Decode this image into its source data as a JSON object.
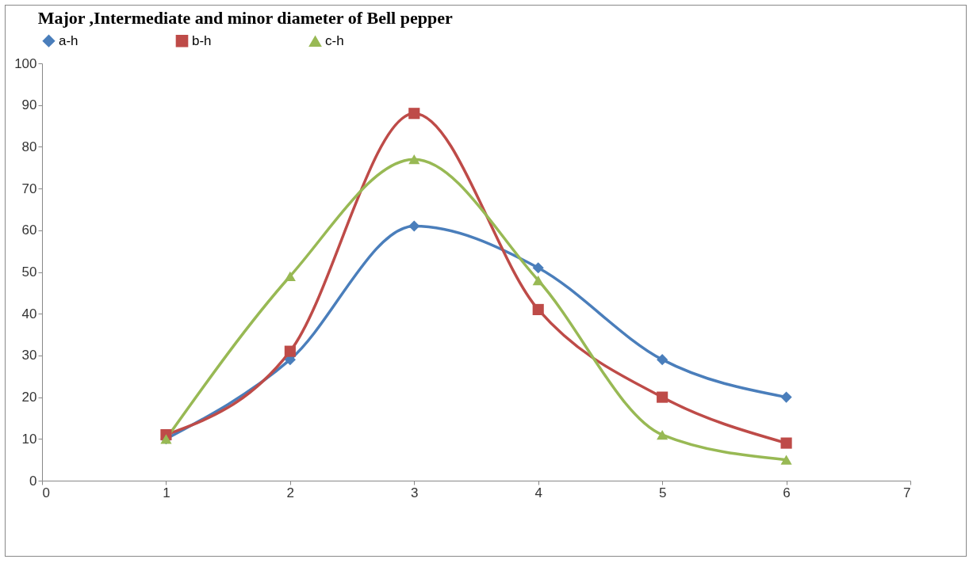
{
  "chart_data": {
    "type": "line",
    "title": "Major ,Intermediate and minor diameter of Bell pepper",
    "x": [
      1,
      2,
      3,
      4,
      5,
      6
    ],
    "series": [
      {
        "name": "a-h",
        "color": "#4a7ebb",
        "marker": "diamond",
        "values": [
          10,
          29,
          61,
          51,
          29,
          20
        ]
      },
      {
        "name": "b-h",
        "color": "#be4b48",
        "marker": "square",
        "values": [
          11,
          31,
          88,
          41,
          20,
          9
        ]
      },
      {
        "name": "c-h",
        "color": "#98b954",
        "marker": "triangle",
        "values": [
          10,
          49,
          77,
          48,
          11,
          5
        ]
      }
    ],
    "xlim": [
      0,
      7
    ],
    "xticks": [
      0,
      1,
      2,
      3,
      4,
      5,
      6,
      7
    ],
    "ylim": [
      0,
      100
    ],
    "yticks": [
      0,
      10,
      20,
      30,
      40,
      50,
      60,
      70,
      80,
      90,
      100
    ],
    "grid": false,
    "legend": "top",
    "line_style": "solid"
  }
}
